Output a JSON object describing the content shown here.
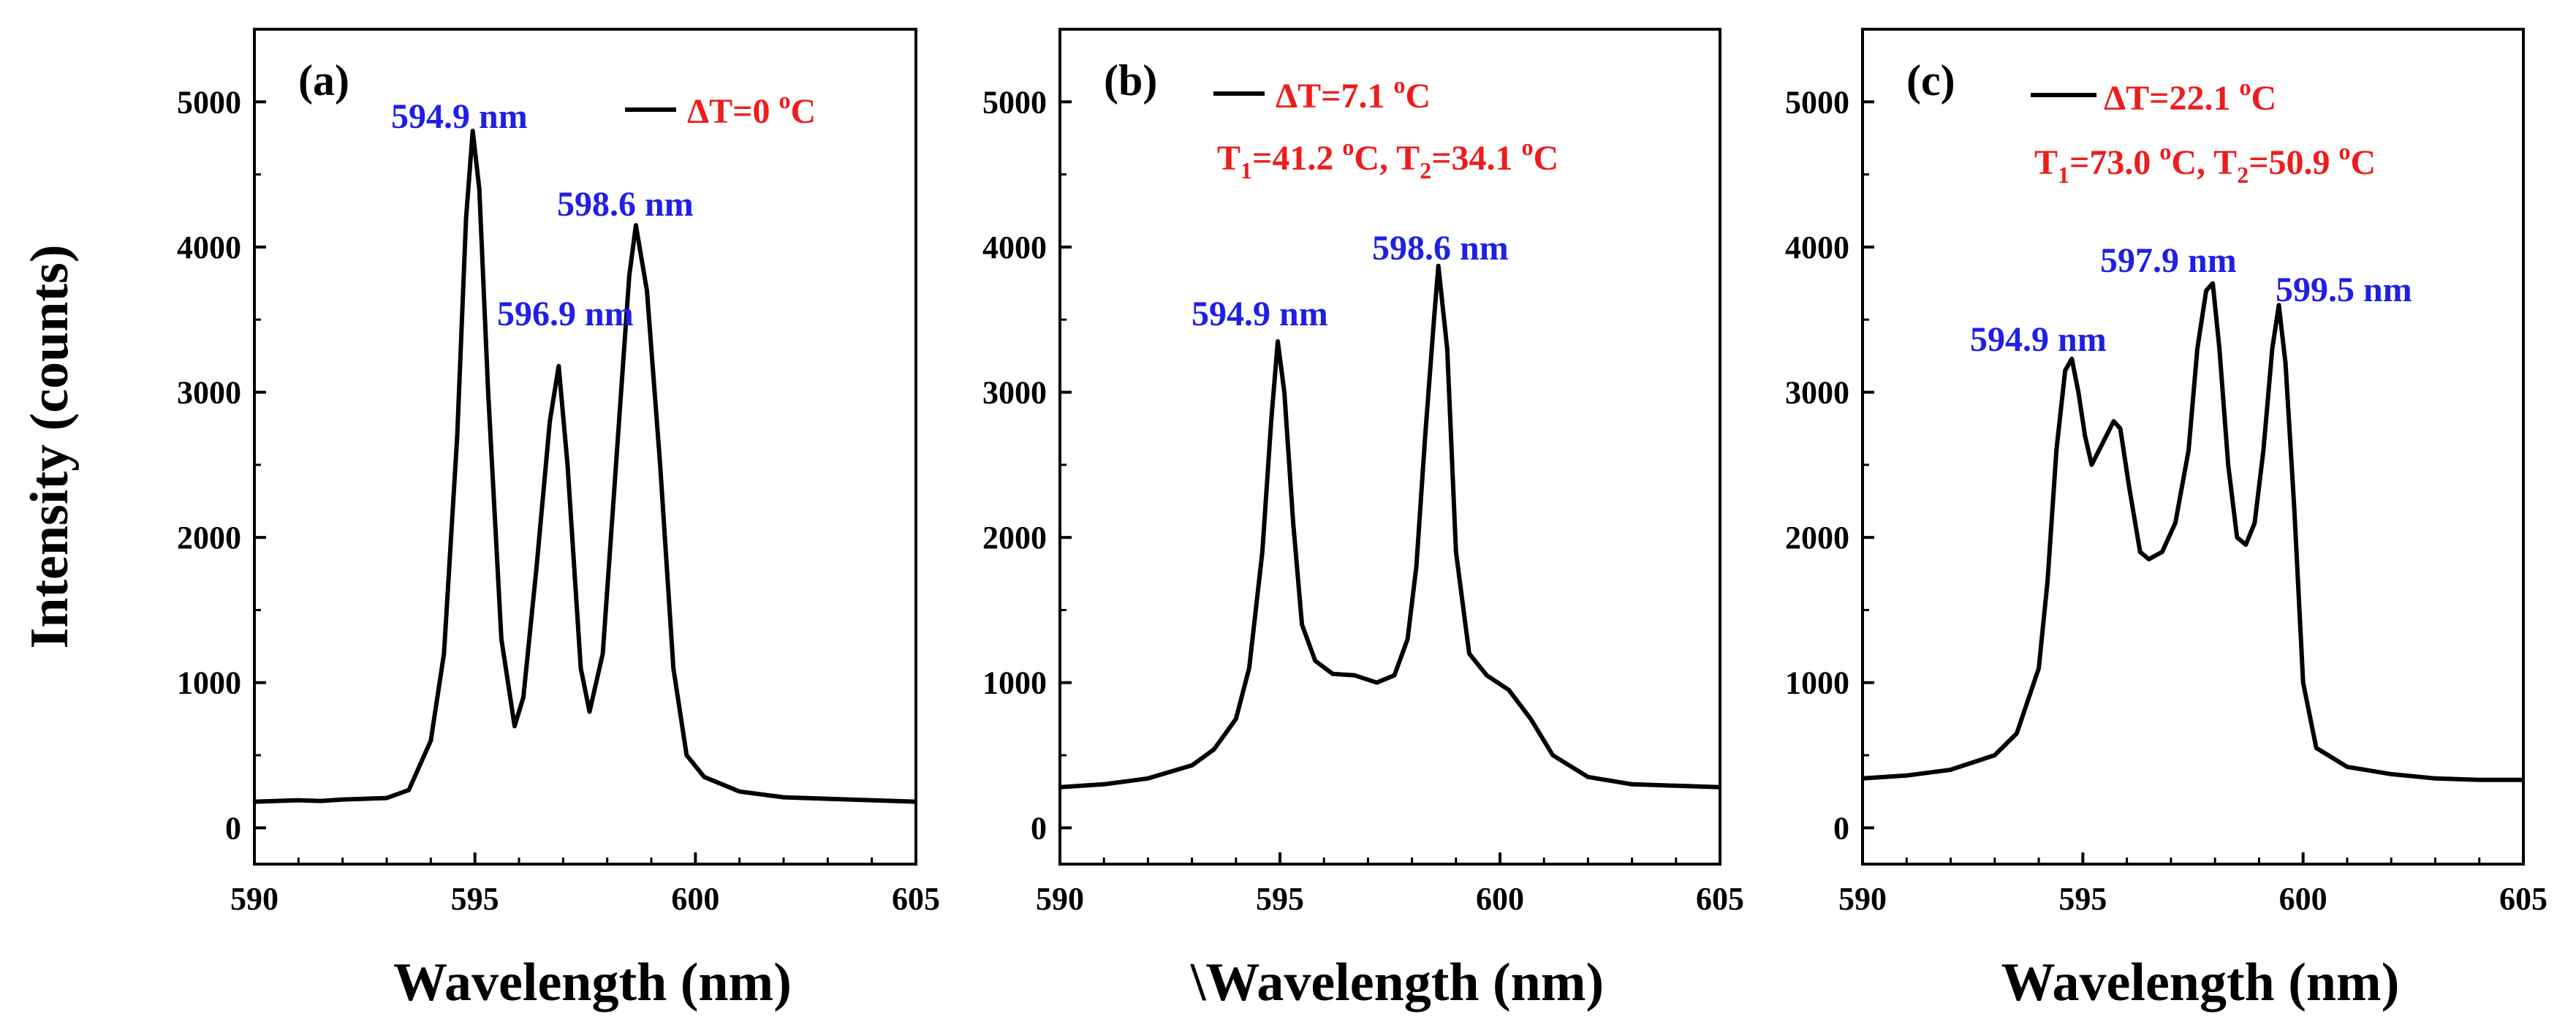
{
  "colors": {
    "line": "#000000",
    "peak_label": "#1f1fe6",
    "annotation": "#ee1c1c",
    "axes": "#000000"
  },
  "chart_data": [
    {
      "type": "line",
      "panel_label": "(a)",
      "xlabel": "Wavelength (nm)",
      "ylabel": "Intensity (counts)",
      "xlim": [
        590,
        605
      ],
      "ylim": [
        -250,
        5500
      ],
      "xticks": [
        590,
        595,
        600,
        605
      ],
      "yticks": [
        0,
        1000,
        2000,
        3000,
        4000,
        5000
      ],
      "legend": {
        "label": "ΔT=0 °C"
      },
      "annotations": [],
      "peak_labels": [
        {
          "text": "594.9 nm",
          "x": 594.9,
          "y": 4800
        },
        {
          "text": "596.9 nm",
          "x": 596.9,
          "y": 3200
        },
        {
          "text": "598.6 nm",
          "x": 598.6,
          "y": 4180
        }
      ],
      "series": [
        {
          "name": "ΔT=0 °C",
          "x": [
            590,
            590.5,
            591,
            591.5,
            592,
            592.5,
            593,
            593.5,
            594,
            594.3,
            594.6,
            594.8,
            594.95,
            595.1,
            595.3,
            595.6,
            595.9,
            596.1,
            596.4,
            596.7,
            596.9,
            597.1,
            597.4,
            597.6,
            597.9,
            598.2,
            598.5,
            598.65,
            598.9,
            599.2,
            599.5,
            599.8,
            600.2,
            601,
            602,
            603,
            604,
            605
          ],
          "y": [
            180,
            185,
            190,
            185,
            195,
            200,
            205,
            260,
            600,
            1200,
            2700,
            4200,
            4800,
            4400,
            3000,
            1300,
            700,
            900,
            1800,
            2800,
            3180,
            2500,
            1100,
            800,
            1200,
            2500,
            3800,
            4150,
            3700,
            2500,
            1100,
            500,
            350,
            250,
            210,
            200,
            190,
            180
          ]
        }
      ]
    },
    {
      "type": "line",
      "panel_label": "(b)",
      "xlabel": "\\Wavelength (nm)",
      "ylabel": "",
      "xlim": [
        590,
        605
      ],
      "ylim": [
        -250,
        5500
      ],
      "xticks": [
        590,
        595,
        600,
        605
      ],
      "yticks": [
        0,
        1000,
        2000,
        3000,
        4000,
        5000
      ],
      "legend": {
        "label": "ΔT=7.1 °C"
      },
      "annotations": [
        {
          "t1": "41.2",
          "t2": "34.1"
        }
      ],
      "peak_labels": [
        {
          "text": "594.9 nm",
          "x": 594.9,
          "y": 3350
        },
        {
          "text": "598.6 nm",
          "x": 598.6,
          "y": 3870
        }
      ],
      "series": [
        {
          "name": "ΔT=7.1 °C",
          "x": [
            590,
            591,
            592,
            593,
            593.5,
            594,
            594.3,
            594.6,
            594.8,
            594.95,
            595.1,
            595.3,
            595.5,
            595.8,
            596.2,
            596.7,
            597.2,
            597.6,
            597.9,
            598.1,
            598.3,
            598.5,
            598.6,
            598.8,
            599,
            599.3,
            599.7,
            600.2,
            600.7,
            601.2,
            602,
            603,
            604,
            605
          ],
          "y": [
            280,
            300,
            340,
            430,
            540,
            750,
            1100,
            1900,
            2800,
            3350,
            3000,
            2100,
            1400,
            1150,
            1060,
            1050,
            1000,
            1050,
            1300,
            1800,
            2700,
            3500,
            3870,
            3300,
            1900,
            1200,
            1050,
            950,
            750,
            500,
            350,
            300,
            290,
            280
          ]
        }
      ]
    },
    {
      "type": "line",
      "panel_label": "(c)",
      "xlabel": "Wavelength (nm)",
      "ylabel": "",
      "xlim": [
        590,
        605
      ],
      "ylim": [
        -250,
        5500
      ],
      "xticks": [
        590,
        595,
        600,
        605
      ],
      "yticks": [
        0,
        1000,
        2000,
        3000,
        4000,
        5000
      ],
      "legend": {
        "label": "ΔT=22.1 °C"
      },
      "annotations": [
        {
          "t1": "73.0",
          "t2": "50.9"
        }
      ],
      "peak_labels": [
        {
          "text": "594.9 nm",
          "x": 594.9,
          "y": 3250
        },
        {
          "text": "597.9 nm",
          "x": 597.9,
          "y": 3750
        },
        {
          "text": "599.5 nm",
          "x": 599.5,
          "y": 3600
        }
      ],
      "series": [
        {
          "name": "ΔT=22.1 °C",
          "x": [
            590,
            591,
            592,
            593,
            593.5,
            594,
            594.2,
            594.4,
            594.6,
            594.75,
            594.9,
            595.05,
            595.2,
            595.45,
            595.7,
            595.85,
            596.05,
            596.3,
            596.5,
            596.8,
            597.1,
            597.4,
            597.6,
            597.8,
            597.95,
            598.1,
            598.3,
            598.5,
            598.7,
            598.9,
            599.1,
            599.3,
            599.45,
            599.6,
            599.8,
            600,
            600.3,
            601,
            602,
            603,
            604,
            605
          ],
          "y": [
            340,
            360,
            400,
            500,
            650,
            1100,
            1700,
            2600,
            3150,
            3230,
            3000,
            2700,
            2500,
            2650,
            2800,
            2750,
            2350,
            1900,
            1850,
            1900,
            2100,
            2600,
            3300,
            3700,
            3750,
            3300,
            2500,
            2000,
            1950,
            2100,
            2600,
            3300,
            3600,
            3200,
            2200,
            1000,
            550,
            420,
            370,
            340,
            330,
            330
          ]
        }
      ]
    }
  ]
}
